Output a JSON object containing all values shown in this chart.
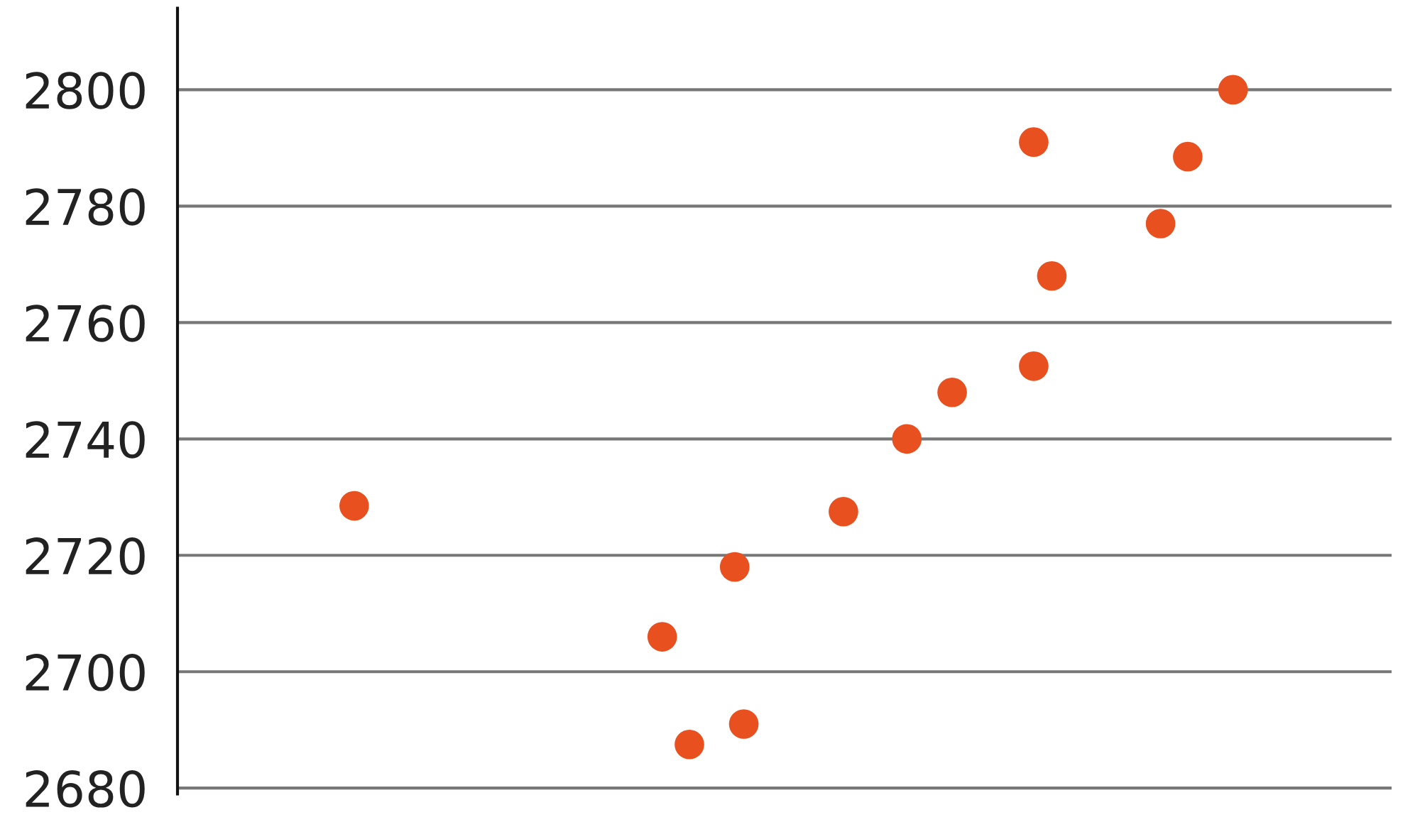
{
  "chart_data": {
    "type": "scatter",
    "categories": [
      null,
      null,
      null,
      null,
      null,
      null,
      null,
      null,
      null,
      null,
      null,
      null,
      null,
      null,
      null,
      null,
      null,
      null,
      null,
      null,
      null,
      null,
      null,
      null,
      null,
      null,
      null,
      null,
      null,
      null,
      null,
      null,
      null,
      null,
      null,
      null,
      null,
      null,
      null,
      null,
      null,
      null,
      null,
      null,
      null,
      null,
      null,
      null,
      null,
      null,
      null,
      null,
      null,
      null,
      null,
      null,
      null,
      null,
      null,
      null,
      null,
      null,
      null,
      null,
      null,
      null,
      null,
      null,
      null,
      null,
      null,
      null,
      null,
      null,
      null,
      null,
      null,
      null,
      null,
      null,
      null,
      null,
      null,
      null,
      null,
      null,
      null,
      null,
      null,
      null,
      null,
      null,
      null,
      null,
      null,
      null,
      null,
      null,
      null,
      null,
      null,
      null,
      null,
      null,
      null,
      null,
      null,
      null,
      null,
      null,
      null,
      null,
      null,
      null,
      null,
      null,
      null,
      null,
      null,
      null,
      null,
      null,
      null,
      null,
      null,
      null,
      null,
      null,
      null,
      null,
      null,
      null,
      null,
      null
    ],
    "series": [
      {
        "color": "#e8501f",
        "values": [
          null,
          null,
          null,
          null,
          null,
          null,
          null,
          null,
          null,
          null,
          null,
          null,
          null,
          null,
          null,
          null,
          null,
          null,
          null,
          2728.5,
          null,
          null,
          null,
          null,
          null,
          null,
          null,
          null,
          null,
          null,
          null,
          null,
          null,
          null,
          null,
          null,
          null,
          null,
          null,
          null,
          null,
          null,
          null,
          null,
          null,
          null,
          null,
          null,
          null,
          null,
          null,
          null,
          null,
          2706,
          null,
          null,
          2687.5,
          null,
          null,
          null,
          null,
          2718,
          2691,
          null,
          null,
          null,
          null,
          null,
          null,
          null,
          null,
          null,
          null,
          2727.5,
          null,
          null,
          null,
          null,
          null,
          null,
          2740,
          null,
          null,
          null,
          null,
          2748,
          null,
          null,
          null,
          null,
          null,
          null,
          null,
          null,
          2752.5,
          null,
          2768,
          null,
          null,
          null,
          null,
          null,
          null,
          null,
          null,
          null,
          null,
          null,
          2777,
          null,
          null,
          2788.5,
          null,
          null,
          null,
          null,
          2800,
          null,
          null,
          null,
          null,
          null,
          null,
          null,
          null,
          null,
          null,
          null,
          null,
          null,
          null,
          null,
          null,
          null
        ]
      },
      {
        "color": "#e8501f",
        "values": [
          null,
          null,
          null,
          null,
          null,
          null,
          null,
          null,
          null,
          null,
          null,
          null,
          null,
          null,
          null,
          null,
          null,
          null,
          null,
          null,
          null,
          null,
          null,
          null,
          null,
          null,
          null,
          null,
          null,
          null,
          null,
          null,
          null,
          null,
          null,
          null,
          null,
          null,
          null,
          null,
          null,
          null,
          null,
          null,
          null,
          null,
          null,
          null,
          null,
          null,
          null,
          null,
          null,
          null,
          null,
          null,
          null,
          null,
          null,
          null,
          null,
          null,
          null,
          null,
          null,
          null,
          null,
          null,
          null,
          null,
          null,
          null,
          null,
          null,
          null,
          null,
          null,
          null,
          null,
          null,
          null,
          null,
          null,
          null,
          null,
          null,
          null,
          null,
          null,
          null,
          null,
          null,
          null,
          null,
          2791,
          null,
          null,
          null,
          null,
          null,
          null,
          null,
          null,
          null,
          null,
          null,
          null,
          null,
          null,
          null,
          null,
          null,
          null,
          null,
          null,
          null,
          null,
          null,
          null,
          null,
          null,
          null,
          null,
          null,
          null,
          null,
          null,
          null,
          null,
          null,
          null,
          null,
          null,
          null
        ]
      }
    ],
    "ylim": [
      2679,
      2814
    ],
    "yticks": [
      2680,
      2700,
      2720,
      2740,
      2760,
      2780,
      2800
    ],
    "tick_labels": "y",
    "grid": "y",
    "marker": "circle"
  }
}
